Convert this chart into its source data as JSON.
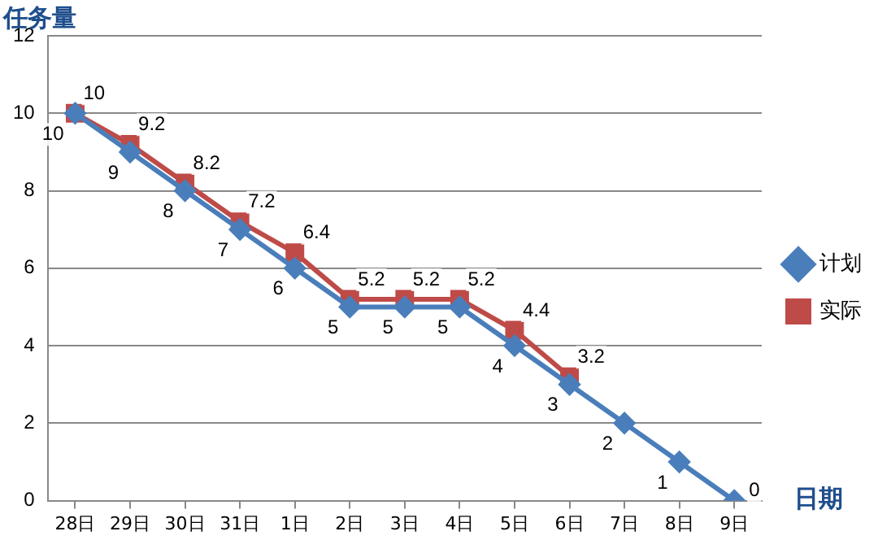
{
  "chart_data": {
    "type": "line",
    "xlabel": "日期",
    "ylabel": "任务量",
    "categories": [
      "28日",
      "29日",
      "30日",
      "31日",
      "1日",
      "2日",
      "3日",
      "4日",
      "5日",
      "6日",
      "7日",
      "8日",
      "9日"
    ],
    "series": [
      {
        "name": "计划",
        "color": "#4a7ebb",
        "marker": "diamond",
        "values": [
          10,
          9,
          8,
          7,
          6,
          5,
          5,
          5,
          4,
          3,
          2,
          1,
          0
        ]
      },
      {
        "name": "实际",
        "color": "#be4b48",
        "marker": "square",
        "values": [
          10,
          9.2,
          8.2,
          7.2,
          6.4,
          5.2,
          5.2,
          5.2,
          4.4,
          3.2,
          null,
          null,
          null
        ]
      }
    ],
    "ylim": [
      0,
      12
    ],
    "yticks": [
      0,
      2,
      4,
      6,
      8,
      10,
      12
    ],
    "grid": "y",
    "legend": "right",
    "data_labels": true,
    "line_style": "solid"
  }
}
